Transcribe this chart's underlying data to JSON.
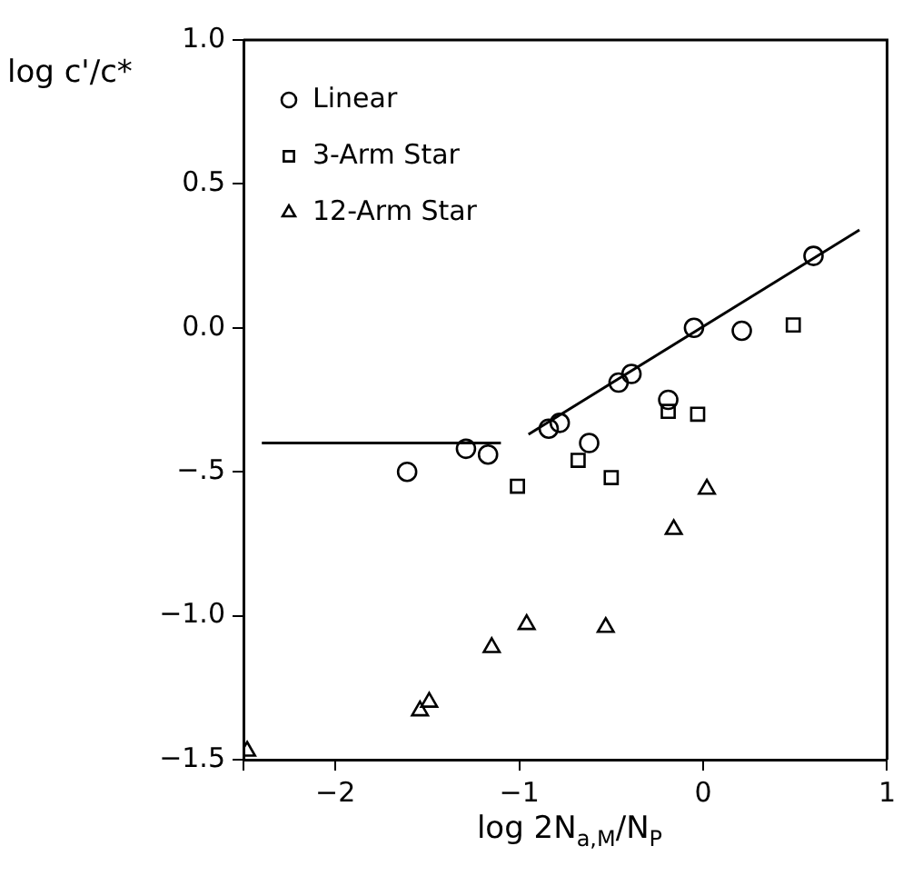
{
  "chart_data": {
    "type": "scatter",
    "xlabel": "log 2N$_{a,M}$/N$_{P}$",
    "ylabel": "log c'/c*",
    "xlim": [
      -2.5,
      1
    ],
    "xticks": [
      {
        "value": -2.5,
        "label": null
      },
      -2,
      -1,
      0,
      1
    ],
    "ylim": [
      -1.5,
      1
    ],
    "yticks": [
      {
        "value": -1.5,
        "label": "−1.5"
      },
      {
        "value": -1,
        "label": "−1.0"
      },
      {
        "value": -0.5,
        "label": "−.5"
      },
      {
        "value": 0,
        "label": "0.0"
      },
      {
        "value": 0.5,
        "label": "0.5"
      },
      {
        "value": 1,
        "label": "1.0"
      }
    ],
    "legend": "top left",
    "grid": false,
    "series": [
      {
        "name": "Linear",
        "color": "#000000",
        "marker": "circle",
        "x": [
          -1.61,
          -1.29,
          -1.17,
          -0.84,
          -0.78,
          -0.62,
          -0.46,
          -0.39,
          -0.19,
          -0.05,
          0.21,
          0.6
        ],
        "values": [
          -0.5,
          -0.42,
          -0.44,
          -0.35,
          -0.33,
          -0.4,
          -0.19,
          -0.16,
          -0.25,
          0.0,
          -0.01,
          0.25
        ]
      },
      {
        "name": "3-Arm Star",
        "color": "#000000",
        "marker": "square",
        "x": [
          -1.01,
          -0.68,
          -0.5,
          -0.19,
          -0.03,
          0.49
        ],
        "values": [
          -0.55,
          -0.46,
          -0.52,
          -0.29,
          -0.3,
          0.01
        ]
      },
      {
        "name": "12-Arm Star",
        "color": "#000000",
        "marker": "triangle",
        "x": [
          -2.48,
          -1.54,
          -1.49,
          -1.15,
          -0.96,
          -0.53,
          -0.16,
          0.02
        ],
        "values": [
          -1.47,
          -1.33,
          -1.3,
          -1.11,
          -1.03,
          -1.04,
          -0.7,
          -0.56
        ]
      },
      {
        "type": "line",
        "color": "#000000",
        "x": [
          -2.4,
          -1.1
        ],
        "values": [
          -0.4,
          -0.4
        ]
      },
      {
        "type": "line",
        "color": "#000000",
        "x": [
          -0.95,
          0.85
        ],
        "values": [
          -0.37,
          0.34
        ]
      }
    ]
  }
}
